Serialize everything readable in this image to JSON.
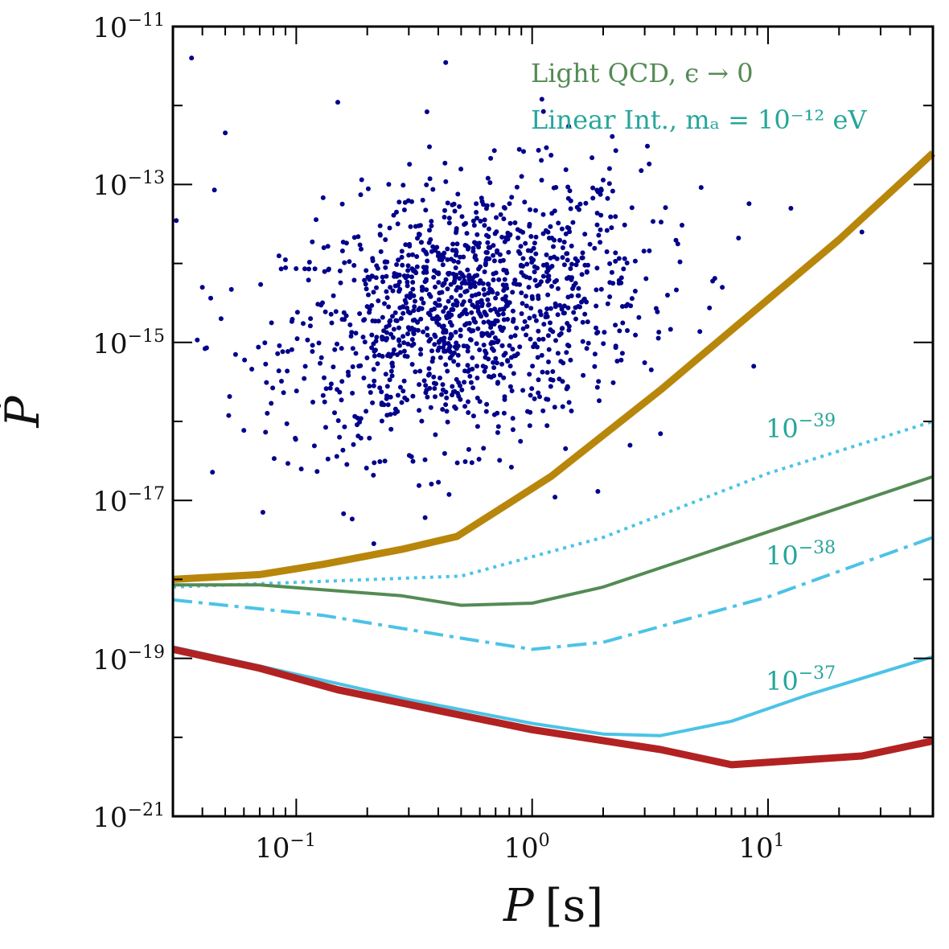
{
  "chart_data": {
    "type": "scatter",
    "title": "",
    "xlabel_main": "P",
    "xlabel_unit": "[s]",
    "ylabel": "Ṗ",
    "x_scale": "log",
    "y_scale": "log",
    "xlim": [
      0.03,
      50
    ],
    "ylim": [
      1e-21,
      1e-11
    ],
    "x_ticks": [
      {
        "value": 0.1,
        "base": "10",
        "exp": "−1"
      },
      {
        "value": 1,
        "base": "10",
        "exp": "0"
      },
      {
        "value": 10,
        "base": "10",
        "exp": "1"
      }
    ],
    "y_ticks": [
      {
        "value": 1e-11,
        "base": "10",
        "exp": "−11"
      },
      {
        "value": 1e-13,
        "base": "10",
        "exp": "−13"
      },
      {
        "value": 1e-15,
        "base": "10",
        "exp": "−15"
      },
      {
        "value": 1e-17,
        "base": "10",
        "exp": "−17"
      },
      {
        "value": 1e-19,
        "base": "10",
        "exp": "−19"
      },
      {
        "value": 1e-21,
        "base": "10",
        "exp": "−21"
      }
    ],
    "legend": [
      {
        "text": "Light QCD, ϵ → 0",
        "color": "#548b54"
      },
      {
        "text": "Linear Int., mₐ = 10⁻¹² eV",
        "color": "#26a69a"
      }
    ],
    "curve_labels": [
      {
        "base": "10",
        "exp": "−39",
        "x": 10,
        "y": 7e-17
      },
      {
        "base": "10",
        "exp": "−38",
        "x": 10,
        "y": 1.8e-18
      },
      {
        "base": "10",
        "exp": "−37",
        "x": 10,
        "y": 4.5e-20
      }
    ],
    "series": [
      {
        "name": "gold-bound",
        "color": "#b8860b",
        "width": 9,
        "dash": "",
        "x": [
          0.03,
          0.07,
          0.13,
          0.28,
          0.48,
          1.2,
          3.5,
          8,
          20,
          50
        ],
        "y": [
          1e-18,
          1.15e-18,
          1.55e-18,
          2.4e-18,
          3.5e-18,
          2e-17,
          2.5e-16,
          2e-15,
          2e-14,
          2.5e-13
        ]
      },
      {
        "name": "linear-10e-39",
        "color": "#4cc3e6",
        "width": 4,
        "dash": "4,6",
        "x": [
          0.03,
          0.5,
          2,
          10,
          50
        ],
        "y": [
          8e-19,
          1.1e-18,
          3.4e-18,
          2.2e-17,
          1e-16
        ]
      },
      {
        "name": "light-qcd",
        "color": "#548b54",
        "width": 4,
        "dash": "",
        "x": [
          0.03,
          0.07,
          0.28,
          0.5,
          1,
          2,
          10,
          50
        ],
        "y": [
          8.5e-19,
          8.5e-19,
          6.2e-19,
          4.7e-19,
          5e-19,
          8e-19,
          4e-18,
          2e-17
        ]
      },
      {
        "name": "linear-10e-38",
        "color": "#4cc3e6",
        "width": 4,
        "dash": "24,8,5,8",
        "x": [
          0.03,
          0.13,
          0.5,
          1,
          2,
          10,
          50
        ],
        "y": [
          5.5e-19,
          3.5e-19,
          1.8e-19,
          1.3e-19,
          1.6e-19,
          6e-19,
          3.4e-18
        ]
      },
      {
        "name": "linear-10e-37",
        "color": "#4cc3e6",
        "width": 4,
        "dash": "",
        "x": [
          0.03,
          0.07,
          0.3,
          1,
          2,
          3.5,
          7,
          15,
          50
        ],
        "y": [
          1.4e-19,
          8e-20,
          3e-20,
          1.5e-20,
          1.1e-20,
          1.05e-20,
          1.6e-20,
          3.5e-20,
          1.05e-19
        ]
      },
      {
        "name": "red-bound",
        "color": "#b22222",
        "width": 9,
        "dash": "",
        "x": [
          0.03,
          0.07,
          0.15,
          0.5,
          1,
          3.5,
          7,
          25,
          50
        ],
        "y": [
          1.3e-19,
          7.5e-20,
          4e-20,
          1.9e-20,
          1.25e-20,
          7e-21,
          4.5e-21,
          5.8e-21,
          9e-21
        ]
      }
    ],
    "scatter": {
      "name": "pulsars",
      "color": "#00008b",
      "point_count": 1300,
      "center_log_period": -0.28,
      "spread_log_period": 0.38,
      "center_log_pdot": -14.6,
      "spread_log_pdot": 0.8,
      "outliers": [
        {
          "x": 0.031,
          "y": 3.5e-14
        },
        {
          "x": 0.036,
          "y": 4e-12
        },
        {
          "x": 0.045,
          "y": 8.5e-14
        },
        {
          "x": 0.05,
          "y": 4.5e-13
        },
        {
          "x": 0.048,
          "y": 2e-15
        },
        {
          "x": 0.04,
          "y": 5e-15
        },
        {
          "x": 0.15,
          "y": 1.1e-12
        },
        {
          "x": 0.43,
          "y": 3.5e-12
        },
        {
          "x": 0.65,
          "y": 1.2e-13
        },
        {
          "x": 1.1,
          "y": 1.2e-12
        },
        {
          "x": 2.9,
          "y": 1.5e-13
        },
        {
          "x": 3.2,
          "y": 4.5e-16
        },
        {
          "x": 6.4,
          "y": 5e-15
        },
        {
          "x": 7.5,
          "y": 2.1e-14
        },
        {
          "x": 8.7,
          "y": 5e-16
        },
        {
          "x": 12.5,
          "y": 5e-14
        },
        {
          "x": 25,
          "y": 2.5e-14
        },
        {
          "x": 0.105,
          "y": 2.5e-17
        },
        {
          "x": 0.108,
          "y": 3.5e-16
        },
        {
          "x": 1.25,
          "y": 1.1e-17
        },
        {
          "x": 1.9,
          "y": 1.3e-17
        },
        {
          "x": 3.5,
          "y": 7e-17
        },
        {
          "x": 2.6,
          "y": 5e-17
        }
      ]
    }
  }
}
